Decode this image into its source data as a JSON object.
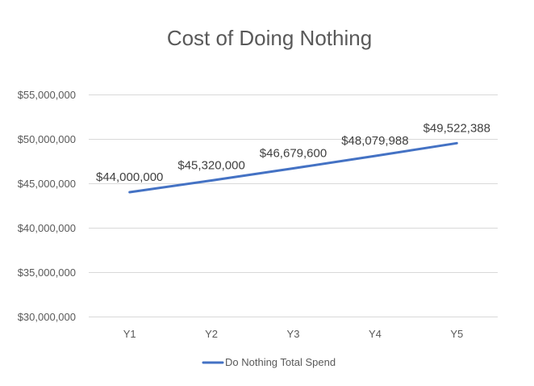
{
  "chart_data": {
    "type": "line",
    "title": "Cost of Doing Nothing",
    "categories": [
      "Y1",
      "Y2",
      "Y3",
      "Y4",
      "Y5"
    ],
    "series": [
      {
        "name": "Do Nothing Total Spend",
        "values": [
          44000000,
          45320000,
          46679600,
          48079988,
          49522388
        ],
        "data_labels": [
          "$44,000,000",
          "$45,320,000",
          "$46,679,600",
          "$48,079,988",
          "$49,522,388"
        ],
        "color": "#4472C4"
      }
    ],
    "y_ticks": [
      30000000,
      35000000,
      40000000,
      45000000,
      50000000,
      55000000
    ],
    "y_tick_labels": [
      "$30,000,000",
      "$35,000,000",
      "$40,000,000",
      "$45,000,000",
      "$50,000,000",
      "$55,000,000"
    ],
    "ylim": [
      30000000,
      55000000
    ],
    "xlabel": "",
    "ylabel": "",
    "grid": true,
    "legend_position": "bottom",
    "gridline_color": "#D9D9D9"
  }
}
